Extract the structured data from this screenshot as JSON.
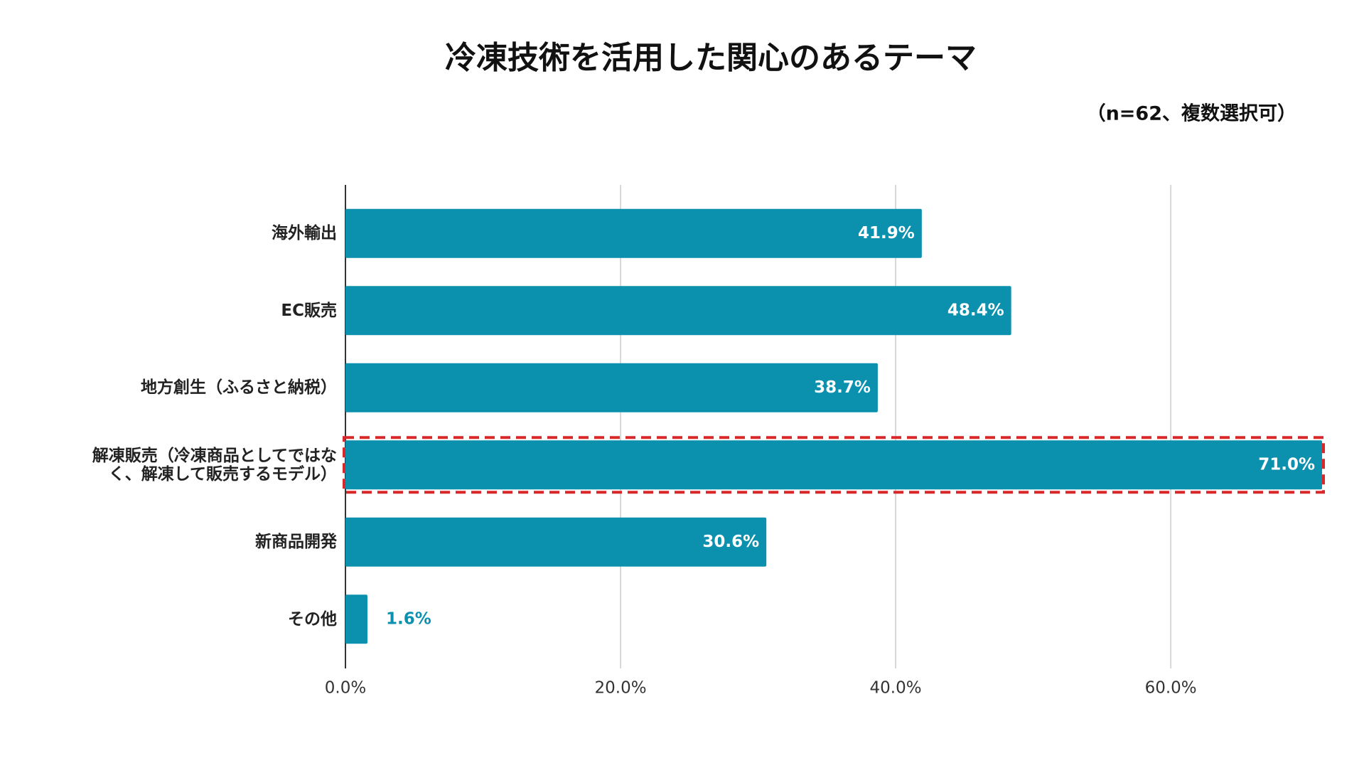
{
  "chart_data": {
    "type": "barh",
    "title": "冷凍技術を活用した関心のあるテーマ",
    "subtitle": "（n=62、複数選択可）",
    "categories": [
      "海外輸出",
      "EC販売",
      "地方創生（ふるさと納税）",
      "解凍販売（冷凍商品としてではなく、解凍して販売するモデル）",
      "新商品開発",
      "その他"
    ],
    "values": [
      41.9,
      48.4,
      38.7,
      71.0,
      30.6,
      1.6
    ],
    "value_labels": [
      "41.9%",
      "48.4%",
      "38.7%",
      "71.0%",
      "30.6%",
      "1.6%"
    ],
    "color": "#0b91ae",
    "highlighted": [
      false,
      false,
      false,
      true,
      false,
      false
    ],
    "highlight_color": "#d8282a",
    "xlim": [
      0,
      71
    ],
    "xticks": [
      {
        "value": 0,
        "label": "0.0%"
      },
      {
        "value": 20,
        "label": "20.0%"
      },
      {
        "value": 40,
        "label": "40.0%"
      },
      {
        "value": 60,
        "label": "60.0%"
      }
    ],
    "grid": true
  }
}
